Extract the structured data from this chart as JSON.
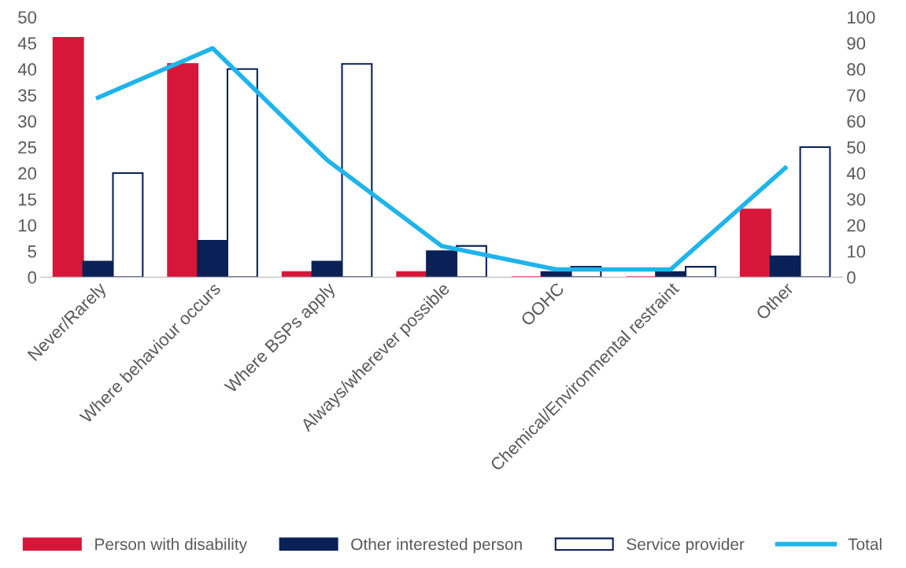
{
  "chart_data": {
    "type": "bar",
    "categories": [
      "Never/Rarely",
      "Where behaviour occurs",
      "Where BSPs apply",
      "Always/wherever possible",
      "OOHC",
      "Chemical/Environmental restraint",
      "Other"
    ],
    "series": [
      {
        "name": "Person with disability",
        "color": "#d6173a",
        "values": [
          46,
          41,
          1,
          1,
          0,
          0,
          13
        ]
      },
      {
        "name": "Other interested person",
        "color": "#0a2157",
        "values": [
          3,
          7,
          3,
          5,
          1,
          1,
          4
        ]
      },
      {
        "name": "Service provider",
        "color": "#ffffff",
        "values": [
          20,
          40,
          41,
          6,
          2,
          2,
          25
        ]
      },
      {
        "name": "Total",
        "type": "line",
        "axis": "y2",
        "color": "#1fb4ec",
        "values": [
          69,
          88,
          45,
          12,
          3,
          3,
          42
        ]
      }
    ],
    "ylim": [
      0,
      50
    ],
    "yticks": [
      0,
      5,
      10,
      15,
      20,
      25,
      30,
      35,
      40,
      45,
      50
    ],
    "y2lim": [
      0,
      100
    ],
    "y2ticks": [
      0,
      10,
      20,
      30,
      40,
      50,
      60,
      70,
      80,
      90,
      100
    ],
    "grid": false,
    "legend": "bottom"
  }
}
